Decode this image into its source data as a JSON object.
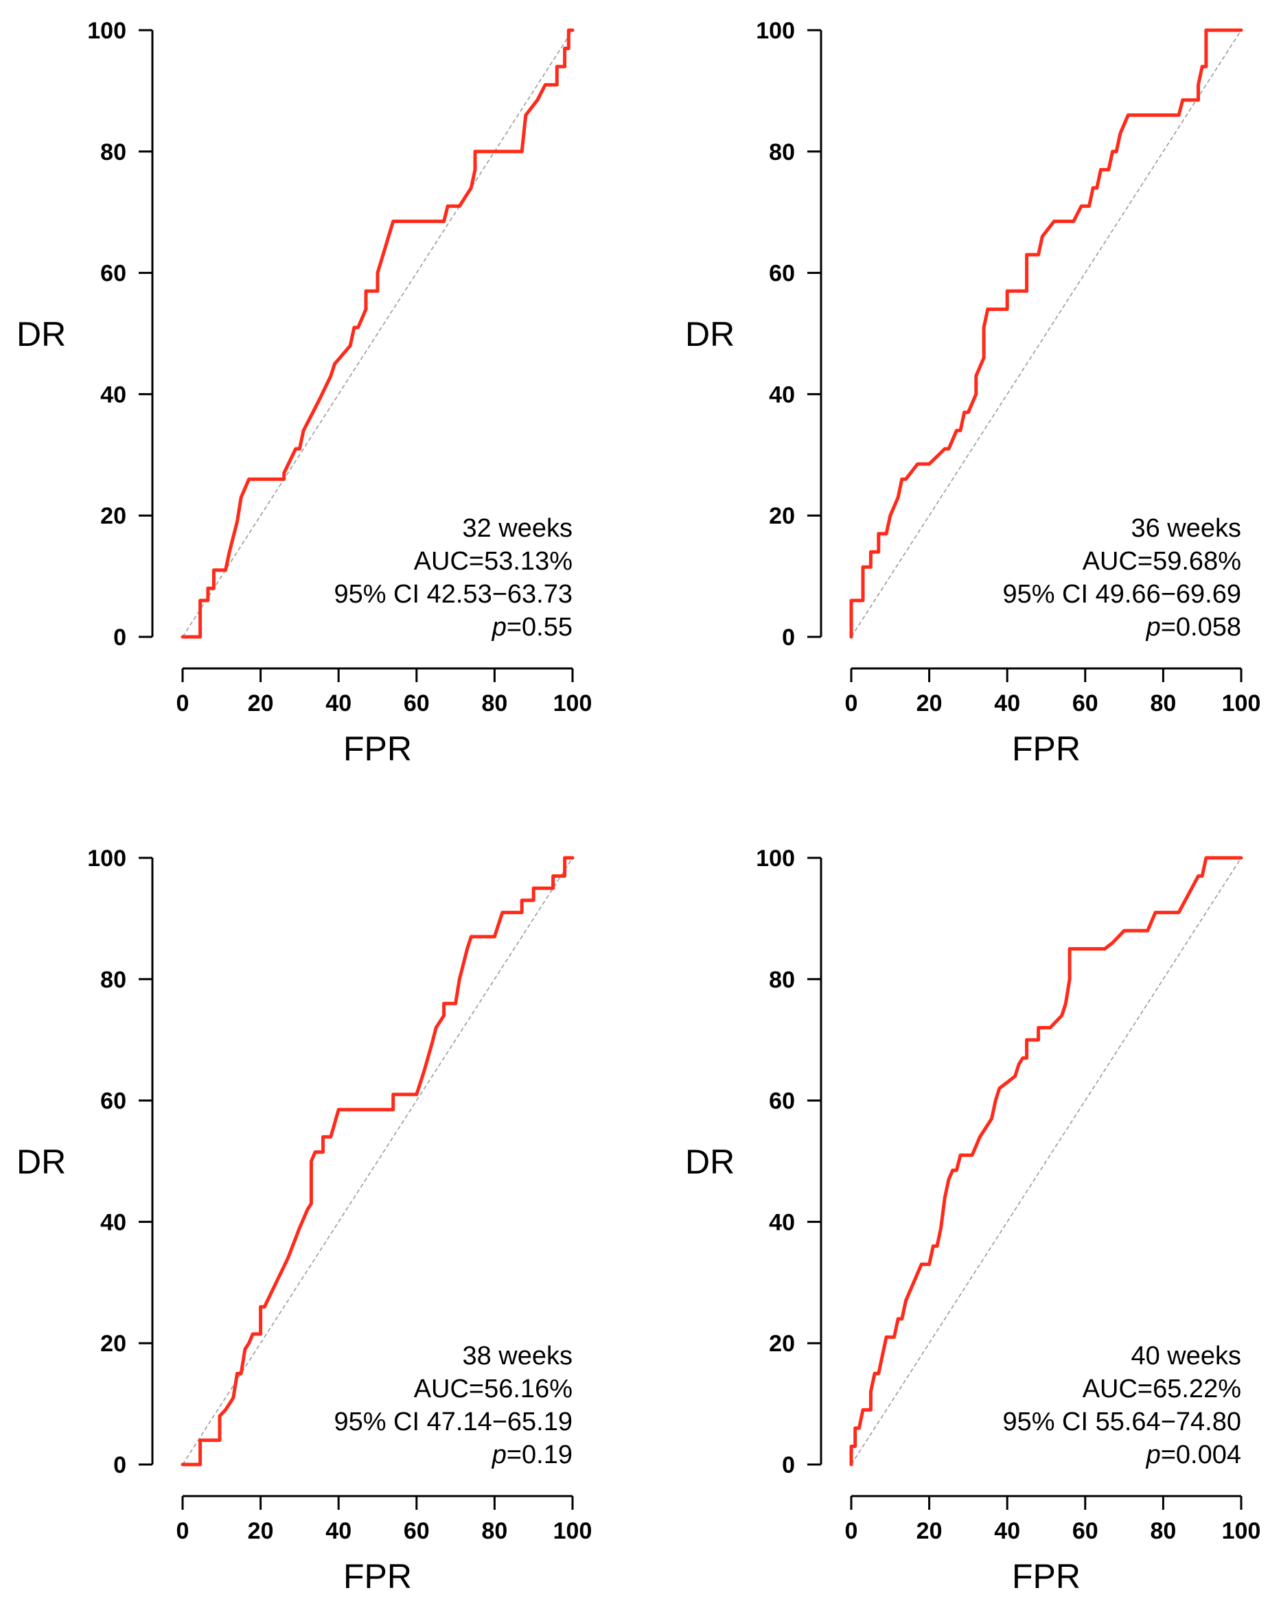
{
  "colors": {
    "curve": "#ff2a1a",
    "diagonal": "#9a9a9a",
    "axis": "#000000"
  },
  "chart_data": [
    {
      "type": "line",
      "xlabel": "FPR",
      "ylabel": "DR",
      "xlim": [
        0,
        100
      ],
      "ylim": [
        0,
        100
      ],
      "xticks": [
        "0",
        "20",
        "40",
        "60",
        "80",
        "100"
      ],
      "yticks": [
        "0",
        "20",
        "40",
        "60",
        "80",
        "100"
      ],
      "reference_line": {
        "name": "chance",
        "x": [
          0,
          100
        ],
        "y": [
          0,
          100
        ]
      },
      "annotation": {
        "label": "32 weeks",
        "auc": "AUC=53.13%",
        "ci": "95% CI 42.53−63.73",
        "p_prefix": "p",
        "p_value": "=0.55"
      },
      "series": [
        {
          "name": "ROC 32 weeks",
          "x": [
            0,
            4.5,
            4.5,
            6.5,
            6.5,
            8,
            8,
            11,
            11,
            12,
            14,
            15,
            15,
            17,
            17,
            26,
            26,
            29,
            30,
            30,
            31,
            35,
            38,
            38,
            39,
            43,
            44,
            45,
            45,
            47,
            47,
            50,
            50,
            54,
            67,
            68,
            71,
            71,
            74,
            74,
            75,
            75,
            87,
            88,
            91,
            93,
            96,
            96,
            98,
            98,
            99,
            99,
            100
          ],
          "y": [
            0,
            0,
            6,
            6,
            8,
            8,
            11,
            11,
            11,
            14,
            19,
            23,
            23,
            26,
            26,
            26,
            27,
            31,
            31,
            31,
            34,
            39,
            43,
            43,
            45,
            48,
            51,
            51,
            51,
            54,
            57,
            57,
            60,
            68.5,
            68.5,
            71,
            71,
            71,
            74,
            74,
            77,
            80,
            80,
            86,
            88.5,
            91,
            91,
            94,
            94,
            97,
            97,
            100,
            100
          ]
        }
      ]
    },
    {
      "type": "line",
      "xlabel": "FPR",
      "ylabel": "DR",
      "xlim": [
        0,
        100
      ],
      "ylim": [
        0,
        100
      ],
      "xticks": [
        "0",
        "20",
        "40",
        "60",
        "80",
        "100"
      ],
      "yticks": [
        "0",
        "20",
        "40",
        "60",
        "80",
        "100"
      ],
      "reference_line": {
        "name": "chance",
        "x": [
          0,
          100
        ],
        "y": [
          0,
          100
        ]
      },
      "annotation": {
        "label": "36 weeks",
        "auc": "AUC=59.68%",
        "ci": "95% CI 49.66−69.69",
        "p_prefix": "p",
        "p_value": "=0.058"
      },
      "series": [
        {
          "name": "ROC 36 weeks",
          "x": [
            0,
            0,
            3,
            3,
            5,
            5,
            6,
            7,
            7,
            9,
            10,
            10,
            12,
            13,
            14,
            14,
            17,
            19,
            20,
            20,
            24,
            25,
            25,
            27,
            28,
            29,
            30,
            32,
            32,
            34,
            34,
            35,
            37,
            38,
            40,
            40,
            41,
            45,
            45,
            46,
            48,
            49,
            49,
            52,
            57,
            59,
            59,
            61,
            62,
            63,
            64,
            66,
            67,
            68,
            68,
            69,
            71,
            71,
            73,
            73,
            75,
            83,
            84,
            85,
            85,
            89,
            89,
            90,
            91,
            91,
            92,
            100
          ],
          "y": [
            0,
            6,
            6,
            11.5,
            11.5,
            14,
            14,
            14,
            17,
            17,
            20,
            20,
            23,
            26,
            26,
            26,
            28.5,
            28.5,
            28.5,
            28.5,
            31,
            31,
            31,
            34,
            34,
            37,
            37,
            40,
            43,
            46,
            51,
            54,
            54,
            54,
            54,
            57,
            57,
            57,
            63,
            63,
            63,
            66,
            66,
            68.5,
            68.5,
            71,
            71,
            71,
            74,
            74,
            77,
            77,
            80,
            80,
            80,
            83,
            86,
            86,
            86,
            86,
            86,
            86,
            86,
            88.5,
            88.5,
            88.5,
            91,
            94,
            94,
            100,
            100,
            100
          ]
        }
      ]
    },
    {
      "type": "line",
      "xlabel": "FPR",
      "ylabel": "DR",
      "xlim": [
        0,
        100
      ],
      "ylim": [
        0,
        100
      ],
      "xticks": [
        "0",
        "20",
        "40",
        "60",
        "80",
        "100"
      ],
      "yticks": [
        "0",
        "20",
        "40",
        "60",
        "80",
        "100"
      ],
      "reference_line": {
        "name": "chance",
        "x": [
          0,
          100
        ],
        "y": [
          0,
          100
        ]
      },
      "annotation": {
        "label": "38 weeks",
        "auc": "AUC=56.16%",
        "ci": "95% CI 47.14−65.19",
        "p_prefix": "p",
        "p_value": "=0.19"
      },
      "series": [
        {
          "name": "ROC 38 weeks",
          "x": [
            0,
            4.5,
            4.5,
            9.5,
            9.5,
            11,
            13,
            14,
            15,
            16,
            17,
            18,
            20,
            20,
            21,
            24,
            27,
            30,
            32,
            33,
            33,
            34,
            36,
            36,
            38,
            40,
            40,
            54,
            54,
            60,
            60,
            62,
            64,
            65,
            67,
            67,
            69,
            70,
            71,
            73,
            74,
            80,
            81,
            82,
            82,
            87,
            87,
            90,
            90,
            95,
            95,
            98,
            98,
            100
          ],
          "y": [
            0,
            0,
            4,
            4,
            8,
            9,
            11,
            15,
            15,
            19,
            20,
            21.5,
            21.5,
            26,
            26,
            30,
            34,
            39,
            42,
            43,
            50,
            51.5,
            51.5,
            54,
            54,
            58.5,
            58.5,
            58.5,
            61,
            61,
            61,
            65,
            69.5,
            72,
            74,
            76,
            76,
            76,
            80,
            85,
            87,
            87,
            89,
            91,
            91,
            91,
            93,
            93,
            95,
            95,
            97,
            97,
            100,
            100
          ]
        }
      ]
    },
    {
      "type": "line",
      "xlabel": "FPR",
      "ylabel": "DR",
      "xlim": [
        0,
        100
      ],
      "ylim": [
        0,
        100
      ],
      "xticks": [
        "0",
        "20",
        "40",
        "60",
        "80",
        "100"
      ],
      "yticks": [
        "0",
        "20",
        "40",
        "60",
        "80",
        "100"
      ],
      "reference_line": {
        "name": "chance",
        "x": [
          0,
          100
        ],
        "y": [
          0,
          100
        ]
      },
      "annotation": {
        "label": "40 weeks",
        "auc": "AUC=65.22%",
        "ci": "95% CI 55.64−74.80",
        "p_prefix": "p",
        "p_value": "=0.004"
      },
      "series": [
        {
          "name": "ROC 40 weeks",
          "x": [
            0,
            0,
            1,
            1,
            2,
            3,
            5,
            5,
            6,
            7,
            8,
            9,
            11,
            11,
            12,
            13,
            14,
            16,
            18,
            20,
            21,
            21,
            22,
            23,
            24,
            25,
            26,
            27,
            28,
            31,
            33,
            36,
            37,
            38,
            40,
            42,
            43,
            44,
            45,
            45,
            48,
            48,
            51,
            54,
            55,
            56,
            56,
            57,
            59,
            60,
            65,
            65,
            67,
            70,
            70,
            76,
            78,
            84,
            84,
            89,
            89,
            90,
            91,
            100
          ],
          "y": [
            0,
            3,
            3,
            6,
            6,
            9,
            9,
            12,
            15,
            15,
            18,
            21,
            21,
            21,
            24,
            24,
            27,
            30,
            33,
            33,
            36,
            36,
            36,
            39,
            44,
            47,
            48.5,
            48.5,
            51,
            51,
            54,
            57,
            60,
            62,
            63,
            64,
            66,
            67,
            67,
            70,
            70,
            72,
            72,
            74,
            76,
            80,
            85,
            85,
            85,
            85,
            85,
            85,
            86,
            88,
            88,
            88,
            91,
            91,
            91,
            97,
            97,
            97,
            100,
            100
          ]
        }
      ]
    }
  ]
}
